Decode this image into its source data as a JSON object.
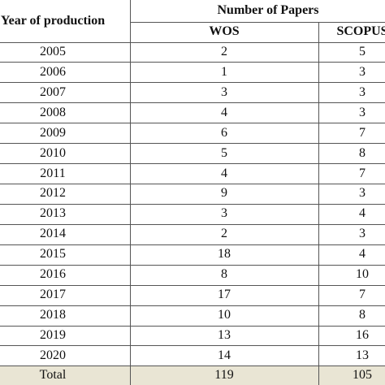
{
  "table": {
    "header": {
      "year": "Year of production",
      "group": "Number of Papers",
      "columns": [
        "WOS",
        "SCOPUS"
      ]
    },
    "rows": [
      [
        "2005",
        2,
        5
      ],
      [
        "2006",
        1,
        3
      ],
      [
        "2007",
        3,
        3
      ],
      [
        "2008",
        4,
        3
      ],
      [
        "2009",
        6,
        7
      ],
      [
        "2010",
        5,
        8
      ],
      [
        "2011",
        4,
        7
      ],
      [
        "2012",
        9,
        3
      ],
      [
        "2013",
        3,
        4
      ],
      [
        "2014",
        2,
        3
      ],
      [
        "2015",
        18,
        4
      ],
      [
        "2016",
        8,
        10
      ],
      [
        "2017",
        17,
        7
      ],
      [
        "2018",
        10,
        8
      ],
      [
        "2019",
        13,
        16
      ],
      [
        "2020",
        14,
        13
      ]
    ],
    "total": {
      "label": "Total",
      "values": [
        119,
        105
      ]
    }
  }
}
